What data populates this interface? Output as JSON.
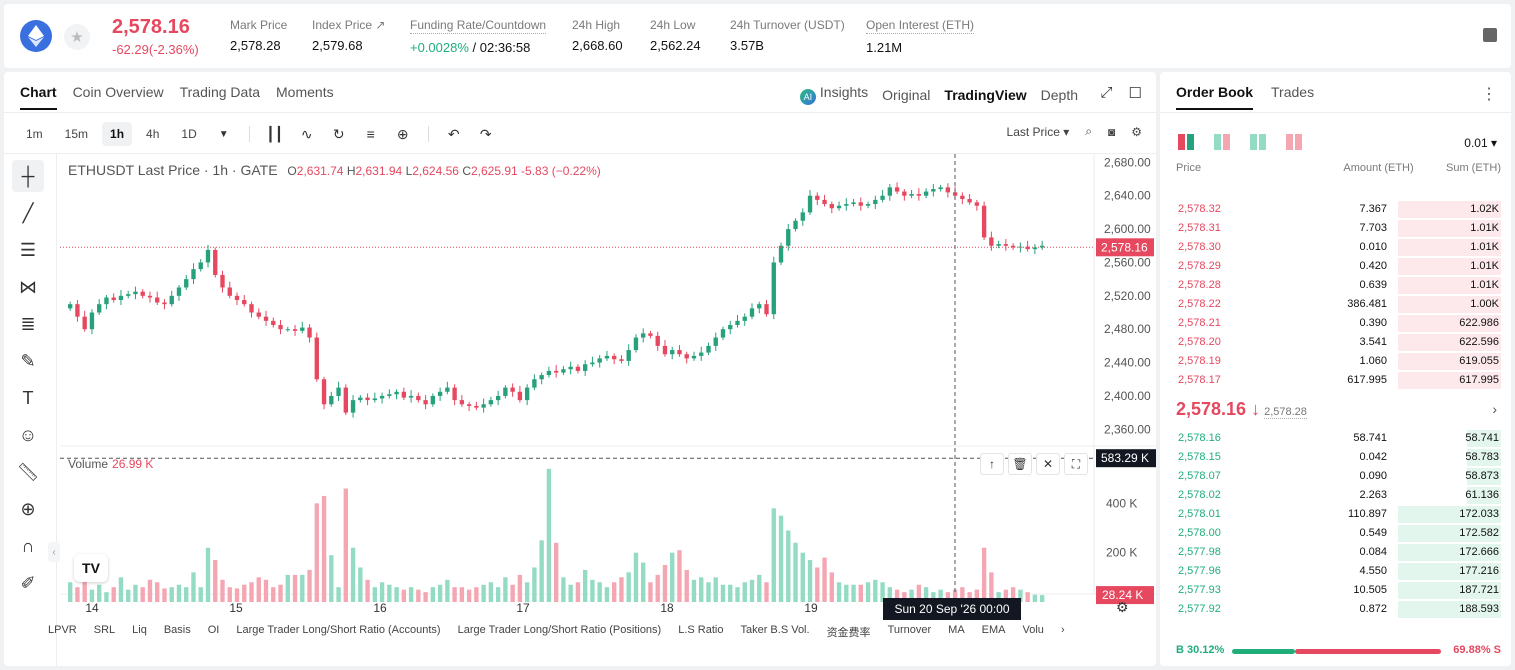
{
  "header": {
    "coin_icon": "ethereum-icon",
    "price": "2,578.16",
    "change": "-62.29(-2.36%)",
    "stats": [
      {
        "label": "Mark Price",
        "value": "2,578.28"
      },
      {
        "label": "Index Price ↗",
        "value": "2,579.68"
      },
      {
        "label": "Funding Rate/Countdown",
        "value_green": "+0.0028%",
        "value": " / 02:36:58"
      },
      {
        "label": "24h High",
        "value": "2,668.60"
      },
      {
        "label": "24h Low",
        "value": "2,562.24"
      },
      {
        "label": "24h Turnover (USDT)",
        "value": "3.57B"
      },
      {
        "label": "Open Interest (ETH)",
        "value": "1.21M"
      }
    ]
  },
  "chart_tabs": [
    "Chart",
    "Coin Overview",
    "Trading Data",
    "Moments"
  ],
  "view_tabs": [
    "Insights",
    "Original",
    "TradingView",
    "Depth"
  ],
  "timeframes": [
    "1m",
    "15m",
    "1h",
    "4h",
    "1D"
  ],
  "price_type": "Last Price",
  "legend": {
    "symbol": "ETHUSDT Last Price · 1h · GATE",
    "o": "2,631.74",
    "h": "2,631.94",
    "l": "2,624.56",
    "c": "2,625.91",
    "chg": "-5.83 (−0.22%)"
  },
  "volume_legend": {
    "label": "Volume",
    "value": "26.99 K"
  },
  "indicators": [
    "LPVR",
    "SRL",
    "Liq",
    "Basis",
    "OI",
    "Large Trader Long/Short Ratio (Accounts)",
    "Large Trader Long/Short Ratio (Positions)",
    "L.S Ratio",
    "Taker B.S Vol.",
    "资金费率",
    "Turnover",
    "MA",
    "EMA",
    "Volu"
  ],
  "chart_data": {
    "type": "candlestick",
    "price_axis": [
      "2,680.00",
      "2,640.00",
      "2,600.00",
      "2,560.00",
      "2,520.00",
      "2,480.00",
      "2,440.00",
      "2,400.00",
      "2,360.00"
    ],
    "price_ylim": [
      2340,
      2690
    ],
    "last_price_label": "2,578.16",
    "last_price": 2578.16,
    "volume_axis": [
      "400 K",
      "200 K"
    ],
    "volume_ylim": [
      0,
      600
    ],
    "volume_crosshair_label": "583.29 K",
    "last_volume_label": "28.24 K",
    "x_ticks": [
      "14",
      "15",
      "16",
      "17",
      "18",
      "19"
    ],
    "crosshair_time": "Sun 20 Sep '26   00:00",
    "candles_close": [
      2510,
      2495,
      2480,
      2500,
      2510,
      2518,
      2515,
      2520,
      2522,
      2525,
      2520,
      2518,
      2512,
      2510,
      2520,
      2530,
      2540,
      2552,
      2560,
      2575,
      2545,
      2530,
      2520,
      2515,
      2510,
      2500,
      2495,
      2490,
      2485,
      2480,
      2480,
      2478,
      2482,
      2470,
      2420,
      2390,
      2400,
      2410,
      2380,
      2395,
      2398,
      2395,
      2397,
      2400,
      2402,
      2405,
      2398,
      2400,
      2395,
      2390,
      2400,
      2405,
      2410,
      2395,
      2390,
      2388,
      2386,
      2390,
      2395,
      2400,
      2410,
      2405,
      2395,
      2410,
      2420,
      2425,
      2430,
      2428,
      2432,
      2435,
      2430,
      2438,
      2440,
      2445,
      2448,
      2444,
      2442,
      2455,
      2470,
      2475,
      2472,
      2460,
      2450,
      2455,
      2450,
      2445,
      2448,
      2452,
      2460,
      2470,
      2480,
      2485,
      2490,
      2495,
      2505,
      2510,
      2498,
      2560,
      2580,
      2600,
      2610,
      2620,
      2640,
      2635,
      2630,
      2625,
      2628,
      2630,
      2632,
      2628,
      2630,
      2635,
      2640,
      2650,
      2645,
      2640,
      2642,
      2640,
      2645,
      2648,
      2650,
      2644,
      2640,
      2636,
      2632,
      2628,
      2590,
      2580,
      2582,
      2580,
      2578,
      2579,
      2576,
      2578,
      2580
    ],
    "volumes": [
      80,
      60,
      90,
      50,
      70,
      40,
      60,
      100,
      50,
      70,
      60,
      90,
      80,
      55,
      60,
      70,
      60,
      120,
      60,
      220,
      170,
      90,
      60,
      55,
      70,
      80,
      100,
      90,
      60,
      70,
      110,
      110,
      110,
      130,
      400,
      430,
      190,
      60,
      460,
      220,
      140,
      90,
      60,
      80,
      70,
      60,
      50,
      60,
      50,
      40,
      60,
      70,
      90,
      60,
      60,
      50,
      60,
      70,
      80,
      60,
      100,
      70,
      110,
      80,
      140,
      250,
      540,
      240,
      100,
      70,
      80,
      130,
      90,
      80,
      60,
      80,
      100,
      120,
      200,
      160,
      80,
      110,
      150,
      200,
      210,
      130,
      90,
      100,
      80,
      100,
      70,
      70,
      60,
      80,
      90,
      110,
      80,
      380,
      350,
      290,
      240,
      200,
      170,
      140,
      180,
      120,
      80,
      70,
      70,
      70,
      80,
      90,
      80,
      60,
      50,
      40,
      50,
      70,
      60,
      40,
      50,
      40,
      50,
      60,
      40,
      50,
      220,
      120,
      40,
      50,
      60,
      50,
      40,
      30,
      28
    ]
  },
  "order_book": {
    "tabs": [
      "Order Book",
      "Trades"
    ],
    "step": "0.01 ▾",
    "headers": [
      "Price",
      "Amount (ETH)",
      "Sum (ETH)"
    ],
    "asks": [
      {
        "p": "2,578.32",
        "a": "7.367",
        "s": "1.02K",
        "depth": 0.54
      },
      {
        "p": "2,578.31",
        "a": "7.703",
        "s": "1.01K",
        "depth": 0.54
      },
      {
        "p": "2,578.30",
        "a": "0.010",
        "s": "1.01K",
        "depth": 0.54
      },
      {
        "p": "2,578.29",
        "a": "0.420",
        "s": "1.01K",
        "depth": 0.54
      },
      {
        "p": "2,578.28",
        "a": "0.639",
        "s": "1.01K",
        "depth": 0.54
      },
      {
        "p": "2,578.22",
        "a": "386.481",
        "s": "1.00K",
        "depth": 0.54
      },
      {
        "p": "2,578.21",
        "a": "0.390",
        "s": "622.986",
        "depth": 0.54
      },
      {
        "p": "2,578.20",
        "a": "3.541",
        "s": "622.596",
        "depth": 0.54
      },
      {
        "p": "2,578.19",
        "a": "1.060",
        "s": "619.055",
        "depth": 0.54
      },
      {
        "p": "2,578.17",
        "a": "617.995",
        "s": "617.995",
        "depth": 0.54
      }
    ],
    "mid_price": "2,578.16 ↓",
    "mark_price": "2,578.28",
    "bids": [
      {
        "p": "2,578.16",
        "a": "58.741",
        "s": "58.741",
        "depth": 0.18
      },
      {
        "p": "2,578.15",
        "a": "0.042",
        "s": "58.783",
        "depth": 0.18
      },
      {
        "p": "2,578.07",
        "a": "0.090",
        "s": "58.873",
        "depth": 0.18
      },
      {
        "p": "2,578.02",
        "a": "2.263",
        "s": "61.136",
        "depth": 0.18
      },
      {
        "p": "2,578.01",
        "a": "110.897",
        "s": "172.033",
        "depth": 0.54
      },
      {
        "p": "2,578.00",
        "a": "0.549",
        "s": "172.582",
        "depth": 0.54
      },
      {
        "p": "2,577.98",
        "a": "0.084",
        "s": "172.666",
        "depth": 0.54
      },
      {
        "p": "2,577.96",
        "a": "4.550",
        "s": "177.216",
        "depth": 0.54
      },
      {
        "p": "2,577.93",
        "a": "10.505",
        "s": "187.721",
        "depth": 0.54
      },
      {
        "p": "2,577.92",
        "a": "0.872",
        "s": "188.593",
        "depth": 0.54
      }
    ],
    "buy_ratio": "B 30.12%",
    "sell_ratio": "69.88% S",
    "buy_fraction": 0.3012
  },
  "colors": {
    "up": "#26a17b",
    "down": "#e5485f",
    "up_vol": "#93dbc3",
    "down_vol": "#f4a6b2"
  }
}
